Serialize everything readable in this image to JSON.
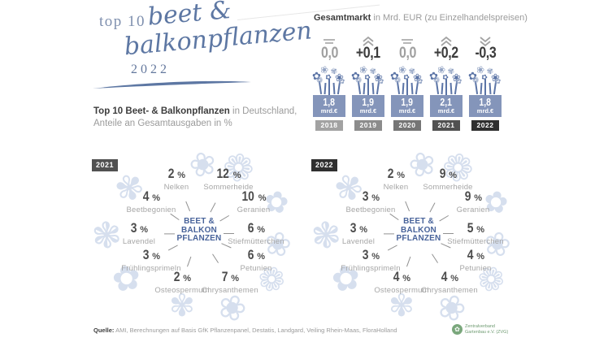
{
  "page": {
    "title_top": "top 10",
    "title_script_line1": "beet &",
    "title_script_line2": "balkonpflanzen",
    "title_year": "2022"
  },
  "market": {
    "heading_bold": "Gesamtmarkt",
    "heading_rest": " in Mrd. EUR (zu Einzelhandelspreisen)",
    "columns": [
      {
        "year": "2018",
        "change": "0,0",
        "trend": "equal",
        "value": "1,8",
        "unit": "mrd.€",
        "badge_color": "#a2a2a2",
        "change_color": "#a0a0a0"
      },
      {
        "year": "2019",
        "change": "+0,1",
        "trend": "up",
        "value": "1,9",
        "unit": "mrd.€",
        "badge_color": "#8c8c8c",
        "change_color": "#3c3c3c"
      },
      {
        "year": "2020",
        "change": "0,0",
        "trend": "equal",
        "value": "1,9",
        "unit": "mrd.€",
        "badge_color": "#757575",
        "change_color": "#a0a0a0"
      },
      {
        "year": "2021",
        "change": "+0,2",
        "trend": "up",
        "value": "2,1",
        "unit": "mrd.€",
        "badge_color": "#515151",
        "change_color": "#3c3c3c"
      },
      {
        "year": "2022",
        "change": "-0,3",
        "trend": "down",
        "value": "1,8",
        "unit": "mrd.€",
        "badge_color": "#2f2f2f",
        "change_color": "#3c3c3c"
      }
    ]
  },
  "subtitle": {
    "bold": "Top 10 Beet- & Balkonpflanzen",
    "rest": " in Deutschland,",
    "line2": "Anteile an Gesamtausgaben in %"
  },
  "ring_charts": [
    {
      "year": "2021",
      "badge_color": "#515151",
      "center": [
        "BEET &",
        "BALKON",
        "PFLANZEN"
      ],
      "items": [
        {
          "name": "Nelken",
          "value": "2"
        },
        {
          "name": "Sommerheide",
          "value": "12"
        },
        {
          "name": "Beetbegonien",
          "value": "4"
        },
        {
          "name": "Geranien",
          "value": "10"
        },
        {
          "name": "Lavendel",
          "value": "3"
        },
        {
          "name": "Stiefmütterchen",
          "value": "6"
        },
        {
          "name": "Frühlingsprimeln",
          "value": "3"
        },
        {
          "name": "Petunien",
          "value": "6"
        },
        {
          "name": "Osteospermum",
          "value": "2"
        },
        {
          "name": "Chrysanthemen",
          "value": "7"
        }
      ]
    },
    {
      "year": "2022",
      "badge_color": "#2f2f2f",
      "center": [
        "BEET &",
        "BALKON",
        "PFLANZEN"
      ],
      "items": [
        {
          "name": "Nelken",
          "value": "2"
        },
        {
          "name": "Sommerheide",
          "value": "9"
        },
        {
          "name": "Beetbegonien",
          "value": "3"
        },
        {
          "name": "Geranien",
          "value": "9"
        },
        {
          "name": "Lavendel",
          "value": "3"
        },
        {
          "name": "Stiefmütterchen",
          "value": "5"
        },
        {
          "name": "Frühlingsprimeln",
          "value": "3"
        },
        {
          "name": "Petunien",
          "value": "4"
        },
        {
          "name": "Osteospermum",
          "value": "4"
        },
        {
          "name": "Chrysanthemen",
          "value": "4"
        }
      ]
    }
  ],
  "source": {
    "label": "Quelle:",
    "text": " AMI, Berechnungen auf Basis GfK Pflanzenpanel, Destatis, Landgard, Veiling Rhein-Maas, FloraHolland"
  },
  "logo": {
    "line1": "Zentralverband",
    "line2": "Gartenbau e.V. (ZVG)"
  },
  "icons": {
    "trend_equal": "equals-lines",
    "trend_up": "double-chevron-up",
    "trend_down": "double-chevron-down",
    "flower_cluster": "✿❀✾",
    "flower_illustration": "❀",
    "logo": "✿"
  },
  "colors": {
    "accent_blue": "#5d77a3",
    "box_blue": "#8495ba",
    "flower_dark": "#5b74a6",
    "flower_light": "#93a4c4",
    "faint_flower": "#d6dfee",
    "center_blue": "#48639a",
    "value_dark": "#4c4c4c",
    "label_gray": "#a6a6a6",
    "logo_green": "#7aa77c"
  },
  "chart_data": [
    {
      "type": "bar",
      "title": "Gesamtmarkt in Mrd. EUR (zu Einzelhandelspreisen)",
      "categories": [
        "2018",
        "2019",
        "2020",
        "2021",
        "2022"
      ],
      "values": [
        1.8,
        1.9,
        1.9,
        2.1,
        1.8
      ],
      "changes": [
        0.0,
        0.1,
        0.0,
        0.2,
        -0.3
      ],
      "ylabel": "Mrd. EUR",
      "unit": "mrd.€"
    },
    {
      "type": "pie",
      "title": "Top 10 Beet- & Balkonpflanzen in Deutschland, Anteile an Gesamtausgaben in % — 2021",
      "categories": [
        "Nelken",
        "Sommerheide",
        "Beetbegonien",
        "Geranien",
        "Lavendel",
        "Stiefmütterchen",
        "Frühlingsprimeln",
        "Petunien",
        "Osteospermum",
        "Chrysanthemen"
      ],
      "values": [
        2,
        12,
        4,
        10,
        3,
        6,
        3,
        6,
        2,
        7
      ],
      "unit": "%"
    },
    {
      "type": "pie",
      "title": "Top 10 Beet- & Balkonpflanzen in Deutschland, Anteile an Gesamtausgaben in % — 2022",
      "categories": [
        "Nelken",
        "Sommerheide",
        "Beetbegonien",
        "Geranien",
        "Lavendel",
        "Stiefmütterchen",
        "Frühlingsprimeln",
        "Petunien",
        "Osteospermum",
        "Chrysanthemen"
      ],
      "values": [
        2,
        9,
        3,
        9,
        3,
        5,
        3,
        4,
        4,
        4
      ],
      "unit": "%"
    }
  ]
}
